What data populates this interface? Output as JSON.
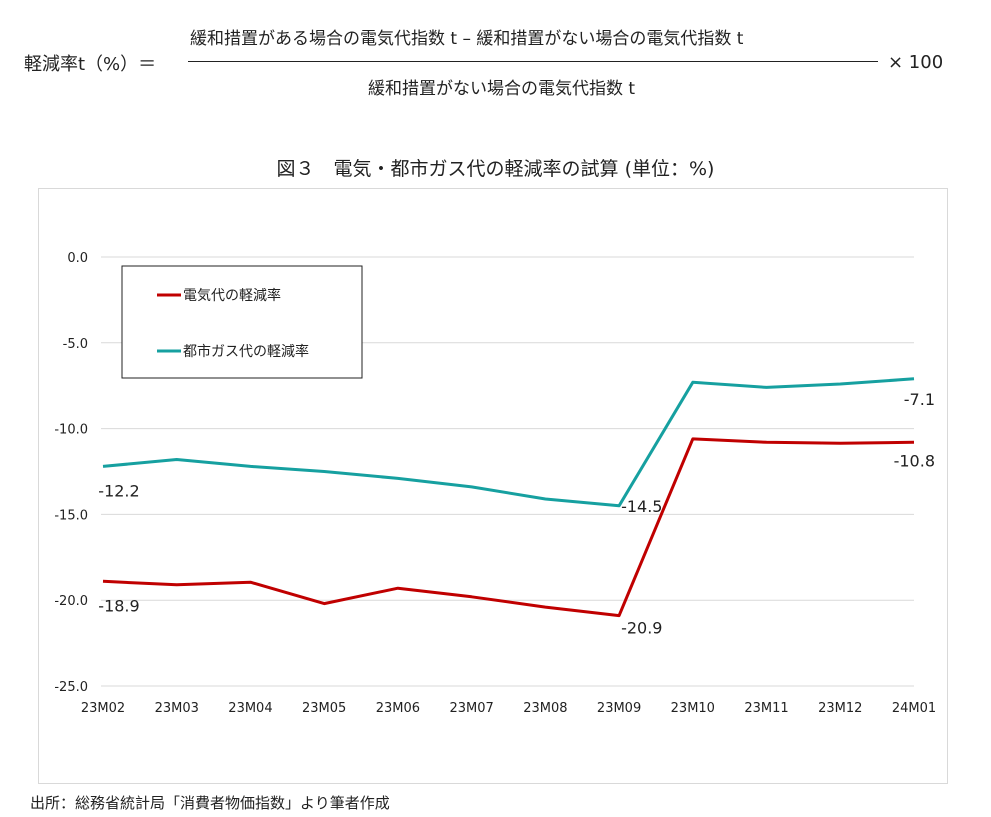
{
  "formula": {
    "lhs": "軽減率t（%）＝",
    "numerator": "緩和措置がある場合の電気代指数 t – 緩和措置がない場合の電気代指数 t",
    "denominator": "緩和措置がない場合の電気代指数 t",
    "multiplier": "× 100"
  },
  "source": "出所：総務省統計局「消費者物価指数」より筆者作成",
  "chart_data": {
    "type": "line",
    "title": "図３　電気・都市ガス代の軽減率の試算 (単位：%)",
    "xlabel": "",
    "ylabel": "",
    "categories": [
      "23M02",
      "23M03",
      "23M04",
      "23M05",
      "23M06",
      "23M07",
      "23M08",
      "23M09",
      "23M10",
      "23M11",
      "23M12",
      "24M01"
    ],
    "ylim": [
      -25,
      0
    ],
    "yticks": [
      0,
      -5,
      -10,
      -15,
      -20,
      -25
    ],
    "ytick_labels": [
      "0.0",
      "-5.0",
      "-10.0",
      "-15.0",
      "-20.0",
      "-25.0"
    ],
    "grid": true,
    "legend_position": "top-left",
    "series": [
      {
        "name": "電気代の軽減率",
        "color": "#c00000",
        "values": [
          -18.9,
          -19.1,
          -18.95,
          -20.2,
          -19.3,
          -19.8,
          -20.4,
          -20.9,
          -10.6,
          -10.8,
          -10.85,
          -10.8
        ],
        "labels": [
          {
            "index": 0,
            "text": "-18.9"
          },
          {
            "index": 7,
            "text": "-20.9"
          },
          {
            "index": 11,
            "text": "-10.8"
          }
        ]
      },
      {
        "name": "都市ガス代の軽減率",
        "color": "#16a0a0",
        "values": [
          -12.2,
          -11.8,
          -12.2,
          -12.5,
          -12.9,
          -13.4,
          -14.1,
          -14.5,
          -7.3,
          -7.6,
          -7.4,
          -7.1
        ],
        "labels": [
          {
            "index": 0,
            "text": "-12.2"
          },
          {
            "index": 7,
            "text": "-14.5"
          },
          {
            "index": 11,
            "text": "-7.1"
          }
        ]
      }
    ]
  }
}
